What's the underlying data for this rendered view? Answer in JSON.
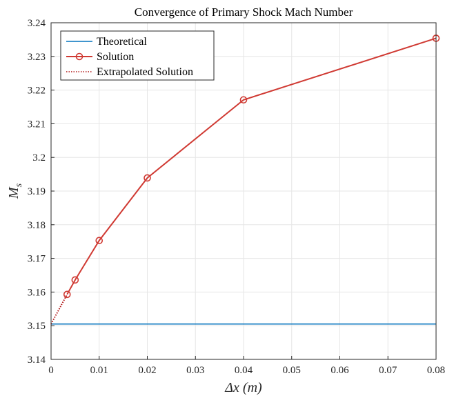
{
  "chart_data": {
    "type": "line",
    "title": "Convergence of Primary Shock Mach Number",
    "xlabel": "Δx (m)",
    "ylabel": "M_s",
    "xlim": [
      0,
      0.08
    ],
    "ylim": [
      3.14,
      3.24
    ],
    "x_ticks": [
      0,
      0.01,
      0.02,
      0.03,
      0.04,
      0.05,
      0.06,
      0.07,
      0.08
    ],
    "x_tick_labels": [
      "0",
      "0.01",
      "0.02",
      "0.03",
      "0.04",
      "0.05",
      "0.06",
      "0.07",
      "0.08"
    ],
    "y_ticks": [
      3.14,
      3.15,
      3.16,
      3.17,
      3.18,
      3.19,
      3.2,
      3.21,
      3.22,
      3.23,
      3.24
    ],
    "y_tick_labels": [
      "3.14",
      "3.15",
      "3.16",
      "3.17",
      "3.18",
      "3.19",
      "3.2",
      "3.21",
      "3.22",
      "3.23",
      "3.24"
    ],
    "grid": true,
    "legend_position": "top-left",
    "series": [
      {
        "name": "Theoretical",
        "style": "solid",
        "marker": "none",
        "color": "#0072BD",
        "x": [
          0,
          0.08
        ],
        "y": [
          3.1505,
          3.1505
        ]
      },
      {
        "name": "Solution",
        "style": "solid",
        "marker": "circle",
        "color": "#D03A33",
        "x": [
          0.003333,
          0.005,
          0.01,
          0.02,
          0.04,
          0.08
        ],
        "y": [
          3.1593,
          3.1636,
          3.1753,
          3.1939,
          3.2171,
          3.2354
        ]
      },
      {
        "name": "Extrapolated Solution",
        "style": "dotted",
        "marker": "none",
        "color": "#B01010",
        "x": [
          0,
          0.003333
        ],
        "y": [
          3.1505,
          3.1593
        ]
      }
    ]
  }
}
